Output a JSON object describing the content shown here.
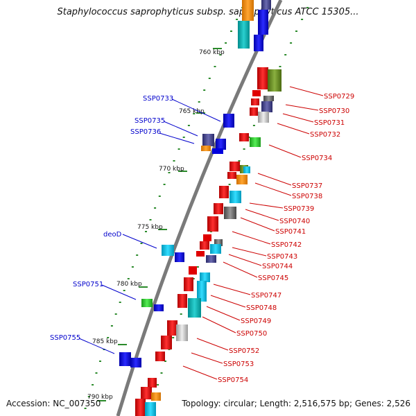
{
  "title": "Staphylococcus saprophyticus subsp. saprophyticus ATCC 15305...",
  "footer": {
    "accession": "Accession: NC_007350",
    "topology": "Topology: circular; Length: 2,516,575 bp; Genes: 2,526"
  },
  "kbp_labels": [
    "760 kbp",
    "765 kbp",
    "770 kbp",
    "775 kbp",
    "780 kbp",
    "785 kbp",
    "790 kbp"
  ],
  "right_labels": [
    "SSP0729",
    "SSP0730",
    "SSP0731",
    "SSP0732",
    "SSP0734",
    "SSP0737",
    "SSP0738",
    "SSP0739",
    "SSP0740",
    "SSP0741",
    "SSP0742",
    "SSP0743",
    "SSP0744",
    "SSP0745",
    "SSP0747",
    "SSP0748",
    "SSP0749",
    "SSP0750",
    "SSP0752",
    "SSP0753",
    "SSP0754"
  ],
  "left_labels": [
    "SSP0733",
    "SSP0735",
    "SSP0736",
    "deoD",
    "SSP0751",
    "SSP0755"
  ],
  "colors": {
    "backbone": "#7a7a7a",
    "right_label": "#cc0000",
    "left_label": "#0000cc",
    "tick": "#2a8a2a"
  }
}
